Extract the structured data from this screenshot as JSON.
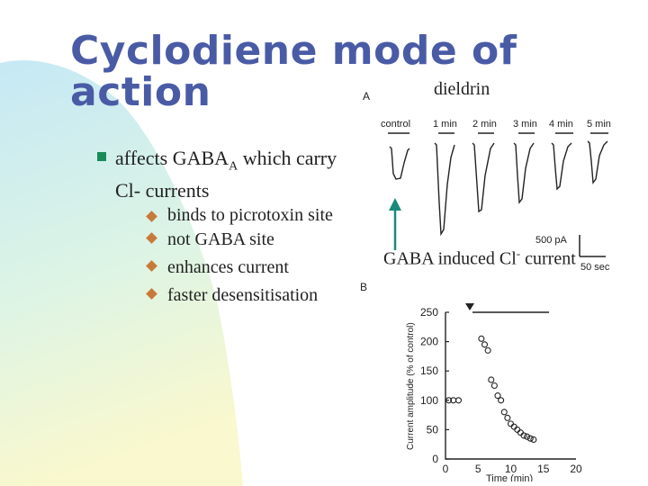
{
  "slide": {
    "title_line1": "Cyclodiene mode of",
    "title_line2": "action",
    "drug_label": "dieldrin",
    "main_bullet_prefix": "affects GABA",
    "main_bullet_sub": "A",
    "main_bullet_suffix": " which carry Cl- currents",
    "sub_bullets": [
      "binds to picrotoxin site",
      "not GABA site",
      "enhances current",
      "faster desensitisation"
    ],
    "caption_prefix": "GABA induced Cl",
    "caption_sup": "-",
    "caption_suffix": " current"
  },
  "figure": {
    "panel_a_label": "A",
    "panel_b_label": "B",
    "trace_labels": [
      "control",
      "1 min",
      "2 min",
      "3 min",
      "4 min",
      "5 min"
    ],
    "scale_current": "500 pA",
    "scale_time": "50 sec",
    "y_axis_label": "Current amplitude (% of control)",
    "x_axis_label": "Time (min)",
    "y_ticks": [
      "250",
      "200",
      "150",
      "100",
      "50",
      "0"
    ],
    "x_ticks": [
      "0",
      "5",
      "10",
      "15",
      "20"
    ]
  },
  "chart_data": {
    "type": "scatter",
    "xlabel": "Time (min)",
    "ylabel": "Current amplitude (% of control)",
    "xlim": [
      0,
      20
    ],
    "ylim": [
      0,
      250
    ],
    "x": [
      0.5,
      1.2,
      2.0,
      5.5,
      6.0,
      6.5,
      7.0,
      7.5,
      8.0,
      8.5,
      9.0,
      9.5,
      10.0,
      10.5,
      11.0,
      11.5,
      12.0,
      12.5,
      13.0,
      13.5
    ],
    "y": [
      100,
      100,
      100,
      205,
      195,
      185,
      135,
      125,
      108,
      100,
      80,
      70,
      60,
      55,
      50,
      45,
      40,
      38,
      35,
      33
    ]
  },
  "colors": {
    "title": "#4a5ba6",
    "bullet_square": "#1a8a5a",
    "sub_diamond": "#c87a3a",
    "arrow": "#1a8a7a"
  }
}
